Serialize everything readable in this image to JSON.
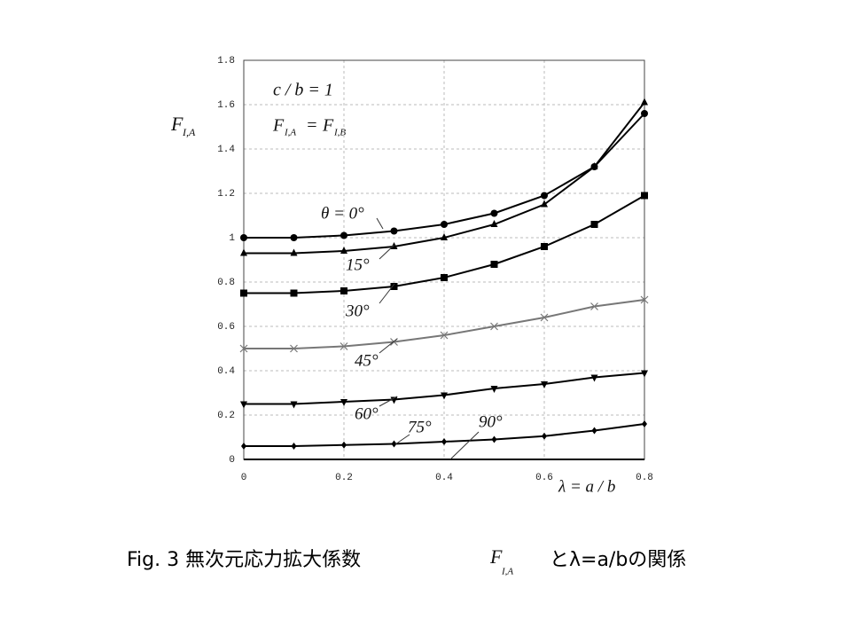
{
  "chart_data": {
    "type": "line",
    "ylabel": "F",
    "ylabel_sub": "I,A",
    "xlabel": "λ = a / b",
    "annotations": {
      "ratio": "c / b = 1",
      "eq_left": "F",
      "eq_left_sub": "I,A",
      "eq_mid": "=",
      "eq_right": "F",
      "eq_right_sub": "I,B"
    },
    "caption": {
      "before": "Fig. 3 無次元応力拡大係数",
      "symbol": "F",
      "symbol_sub": "I,A",
      "after": "とλ=a/bの関係"
    },
    "x": [
      0,
      0.1,
      0.2,
      0.3,
      0.4,
      0.5,
      0.6,
      0.7,
      0.8
    ],
    "series": [
      {
        "name": "θ = 0°",
        "color": "#000000",
        "marker": "circle",
        "values": [
          1.0,
          1.0,
          1.01,
          1.03,
          1.06,
          1.11,
          1.19,
          1.32,
          1.56
        ]
      },
      {
        "name": "15°",
        "color": "#000000",
        "marker": "triangle",
        "values": [
          0.93,
          0.93,
          0.94,
          0.96,
          1.0,
          1.06,
          1.15,
          1.32,
          1.61
        ]
      },
      {
        "name": "30°",
        "color": "#000000",
        "marker": "square",
        "values": [
          0.75,
          0.75,
          0.76,
          0.78,
          0.82,
          0.88,
          0.96,
          1.06,
          1.19
        ]
      },
      {
        "name": "45°",
        "color": "#777777",
        "marker": "x",
        "values": [
          0.5,
          0.5,
          0.51,
          0.53,
          0.56,
          0.6,
          0.64,
          0.69,
          0.72
        ]
      },
      {
        "name": "60°",
        "color": "#000000",
        "marker": "triangle-down",
        "values": [
          0.25,
          0.25,
          0.26,
          0.27,
          0.29,
          0.32,
          0.34,
          0.37,
          0.39
        ]
      },
      {
        "name": "75°",
        "color": "#000000",
        "marker": "diamond",
        "values": [
          0.06,
          0.06,
          0.065,
          0.07,
          0.08,
          0.09,
          0.105,
          0.13,
          0.16
        ]
      },
      {
        "name": "90°",
        "color": "#000000",
        "marker": "none",
        "values": [
          0,
          0,
          0,
          0,
          0,
          0,
          0,
          0,
          0
        ]
      }
    ],
    "xlim": [
      0,
      0.8
    ],
    "xticks": [
      0,
      0.2,
      0.4,
      0.6,
      0.8
    ],
    "ylim": [
      0,
      1.8
    ],
    "yticks": [
      0,
      0.2,
      0.4,
      0.6,
      0.8,
      1,
      1.2,
      1.4,
      1.6,
      1.8
    ],
    "grid": true
  }
}
